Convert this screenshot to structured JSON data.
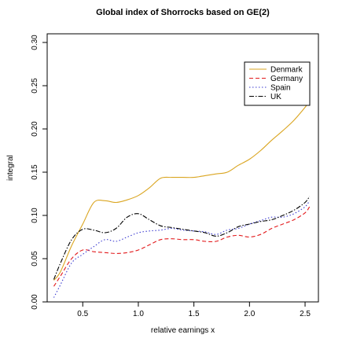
{
  "chart_data": {
    "type": "line",
    "title": "Global index of Shorrocks based on GE(2)",
    "xlabel": "relative earnings x",
    "ylabel": "integral",
    "xlim": [
      0.18,
      2.62
    ],
    "ylim": [
      0.0,
      0.31
    ],
    "x_ticks": [
      0.5,
      1.0,
      1.5,
      2.0,
      2.5
    ],
    "x_tick_labels": [
      "0.5",
      "1.0",
      "1.5",
      "2.0",
      "2.5"
    ],
    "y_ticks": [
      0.0,
      0.05,
      0.1,
      0.15,
      0.2,
      0.25,
      0.3
    ],
    "y_tick_labels": [
      "0.00",
      "0.05",
      "0.10",
      "0.15",
      "0.20",
      "0.25",
      "0.30"
    ],
    "grid": false,
    "legend_position": "top-right",
    "series": [
      {
        "name": "Denmark",
        "color": "#DAA520",
        "dash": "solid",
        "x": [
          0.24,
          0.3,
          0.4,
          0.5,
          0.6,
          0.7,
          0.8,
          0.9,
          1.0,
          1.1,
          1.2,
          1.3,
          1.4,
          1.5,
          1.6,
          1.7,
          1.8,
          1.9,
          2.0,
          2.1,
          2.2,
          2.3,
          2.4,
          2.5,
          2.54
        ],
        "y": [
          0.025,
          0.035,
          0.065,
          0.09,
          0.115,
          0.117,
          0.115,
          0.118,
          0.123,
          0.132,
          0.143,
          0.144,
          0.144,
          0.144,
          0.146,
          0.148,
          0.15,
          0.158,
          0.165,
          0.175,
          0.187,
          0.198,
          0.21,
          0.225,
          0.232
        ]
      },
      {
        "name": "Germany",
        "color": "#E31A1C",
        "dash": "5,3",
        "x": [
          0.24,
          0.3,
          0.4,
          0.5,
          0.6,
          0.7,
          0.8,
          0.9,
          1.0,
          1.1,
          1.2,
          1.3,
          1.4,
          1.5,
          1.6,
          1.7,
          1.8,
          1.9,
          2.0,
          2.1,
          2.2,
          2.3,
          2.4,
          2.5,
          2.54
        ],
        "y": [
          0.018,
          0.03,
          0.05,
          0.06,
          0.058,
          0.057,
          0.056,
          0.057,
          0.06,
          0.066,
          0.072,
          0.073,
          0.072,
          0.072,
          0.07,
          0.07,
          0.075,
          0.077,
          0.075,
          0.078,
          0.085,
          0.09,
          0.095,
          0.103,
          0.11
        ]
      },
      {
        "name": "Spain",
        "color": "#3A3AD0",
        "dash": "1.5,2.5",
        "x": [
          0.24,
          0.3,
          0.4,
          0.5,
          0.6,
          0.7,
          0.8,
          0.9,
          1.0,
          1.1,
          1.2,
          1.3,
          1.4,
          1.5,
          1.6,
          1.7,
          1.8,
          1.9,
          2.0,
          2.1,
          2.2,
          2.3,
          2.4,
          2.5,
          2.54
        ],
        "y": [
          0.005,
          0.02,
          0.045,
          0.055,
          0.064,
          0.072,
          0.07,
          0.075,
          0.08,
          0.082,
          0.083,
          0.085,
          0.083,
          0.082,
          0.081,
          0.078,
          0.083,
          0.085,
          0.09,
          0.094,
          0.098,
          0.098,
          0.102,
          0.11,
          0.117
        ]
      },
      {
        "name": "UK",
        "color": "#000000",
        "dash": "6,2,1.5,2",
        "x": [
          0.24,
          0.3,
          0.4,
          0.5,
          0.6,
          0.7,
          0.8,
          0.9,
          1.0,
          1.1,
          1.2,
          1.3,
          1.4,
          1.5,
          1.6,
          1.7,
          1.8,
          1.9,
          2.0,
          2.1,
          2.2,
          2.3,
          2.4,
          2.5,
          2.54
        ],
        "y": [
          0.026,
          0.045,
          0.072,
          0.084,
          0.083,
          0.08,
          0.085,
          0.098,
          0.102,
          0.095,
          0.088,
          0.086,
          0.084,
          0.082,
          0.08,
          0.076,
          0.08,
          0.087,
          0.09,
          0.093,
          0.095,
          0.1,
          0.106,
          0.115,
          0.122
        ]
      }
    ]
  }
}
